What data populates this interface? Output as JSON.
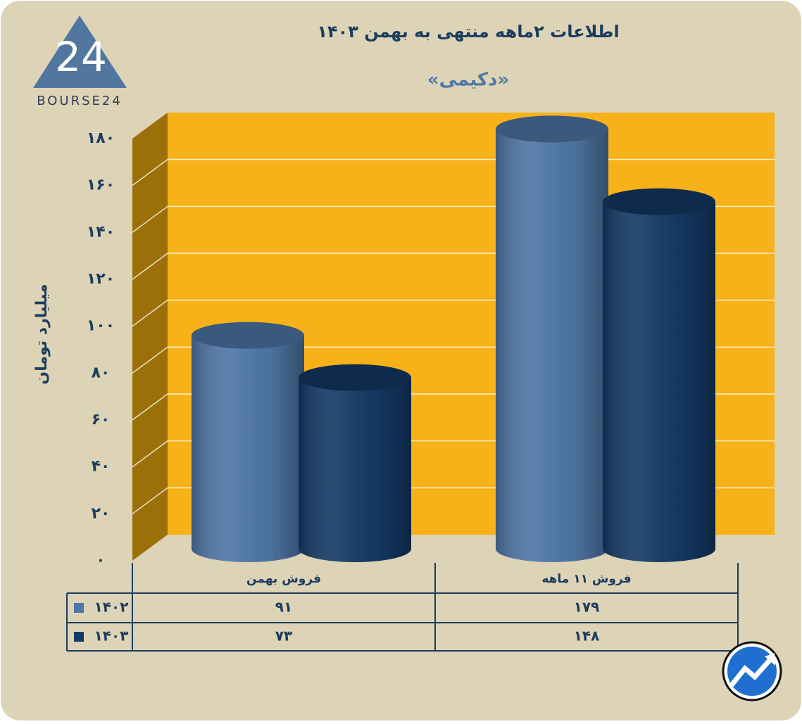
{
  "logo": {
    "mark": "24",
    "text": "BOURSE24"
  },
  "chart_data": {
    "type": "cylinder-bar",
    "title": "اطلاعات ۲ماهه منتهی به بهمن ۱۴۰۳",
    "subtitle": "«دکیمی»",
    "y_label": "میلیارد تومان",
    "categories": [
      "فروش بهمن",
      "فروش ۱۱ ماهه"
    ],
    "series": [
      {
        "name": "۱۴۰۲",
        "color": "#4f77a6",
        "values": [
          91,
          179
        ],
        "value_labels": [
          "۹۱",
          "۱۷۹"
        ]
      },
      {
        "name": "۱۴۰۳",
        "color": "#143a66",
        "values": [
          73,
          148
        ],
        "value_labels": [
          "۷۳",
          "۱۴۸"
        ]
      }
    ],
    "ylim": [
      0,
      180
    ],
    "yticks": [
      {
        "value": 0,
        "label": "۰"
      },
      {
        "value": 20,
        "label": "۲۰"
      },
      {
        "value": 40,
        "label": "۴۰"
      },
      {
        "value": 60,
        "label": "۶۰"
      },
      {
        "value": 80,
        "label": "۸۰"
      },
      {
        "value": 100,
        "label": "۱۰۰"
      },
      {
        "value": 120,
        "label": "۱۲۰"
      },
      {
        "value": 140,
        "label": "۱۴۰"
      },
      {
        "value": 160,
        "label": "۱۶۰"
      },
      {
        "value": 180,
        "label": "۱۸۰"
      }
    ],
    "grid": true,
    "wall_color": "#f7b219"
  }
}
